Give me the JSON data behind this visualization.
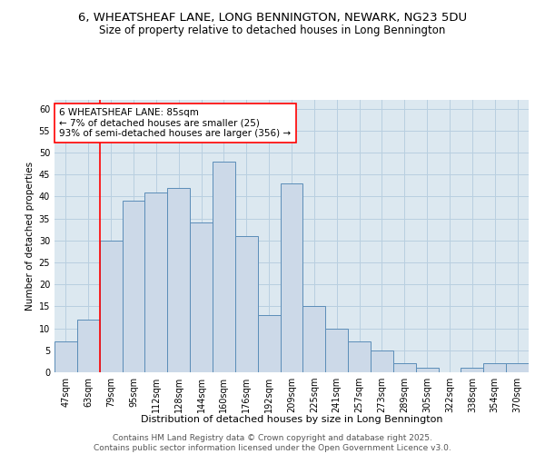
{
  "title1": "6, WHEATSHEAF LANE, LONG BENNINGTON, NEWARK, NG23 5DU",
  "title2": "Size of property relative to detached houses in Long Bennington",
  "xlabel": "Distribution of detached houses by size in Long Bennington",
  "ylabel": "Number of detached properties",
  "categories": [
    "47sqm",
    "63sqm",
    "79sqm",
    "95sqm",
    "112sqm",
    "128sqm",
    "144sqm",
    "160sqm",
    "176sqm",
    "192sqm",
    "209sqm",
    "225sqm",
    "241sqm",
    "257sqm",
    "273sqm",
    "289sqm",
    "305sqm",
    "322sqm",
    "338sqm",
    "354sqm",
    "370sqm"
  ],
  "values": [
    7,
    12,
    30,
    39,
    41,
    42,
    34,
    48,
    31,
    13,
    43,
    15,
    10,
    7,
    5,
    2,
    1,
    0,
    1,
    2,
    2
  ],
  "bar_facecolor": "#ccd9e8",
  "bar_edgecolor": "#5b8db8",
  "grid_color": "#b8cfe0",
  "background_color": "#dce8f0",
  "vline_x_index": 2,
  "vline_color": "red",
  "annotation_text": "6 WHEATSHEAF LANE: 85sqm\n← 7% of detached houses are smaller (25)\n93% of semi-detached houses are larger (356) →",
  "annotation_box_color": "white",
  "annotation_box_edgecolor": "red",
  "ylim": [
    0,
    62
  ],
  "yticks": [
    0,
    5,
    10,
    15,
    20,
    25,
    30,
    35,
    40,
    45,
    50,
    55,
    60
  ],
  "footer": "Contains HM Land Registry data © Crown copyright and database right 2025.\nContains public sector information licensed under the Open Government Licence v3.0.",
  "title1_fontsize": 9.5,
  "title2_fontsize": 8.5,
  "xlabel_fontsize": 8,
  "ylabel_fontsize": 7.5,
  "tick_fontsize": 7,
  "annotation_fontsize": 7.5,
  "footer_fontsize": 6.5
}
